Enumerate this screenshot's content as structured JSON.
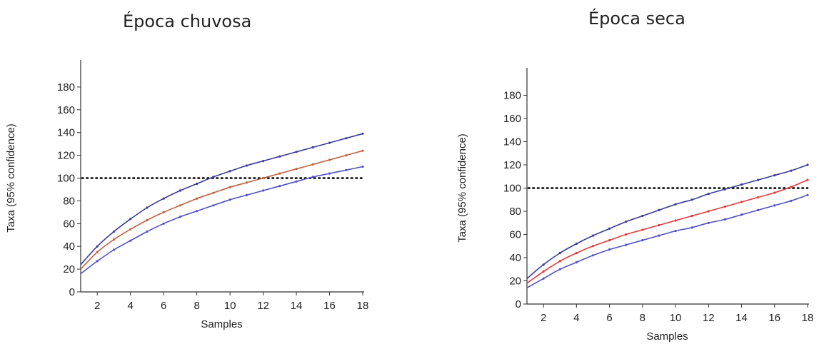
{
  "colors": {
    "upper": "#3a3a9a",
    "lower": "#5050c8",
    "mean_left": "#c06040",
    "mean_right": "#e23a3a",
    "reference": "#000000",
    "axis": "#333333"
  },
  "chart_data": [
    {
      "type": "line",
      "title": "Época chuvosa",
      "xlabel": "Samples",
      "ylabel": "Taxa (95% confidence)",
      "xlim": [
        1,
        18
      ],
      "ylim": [
        0,
        200
      ],
      "xticks": [
        2,
        4,
        6,
        8,
        10,
        12,
        14,
        16,
        18
      ],
      "yticks": [
        0,
        20,
        40,
        60,
        80,
        100,
        120,
        140,
        160,
        180
      ],
      "x": [
        1,
        2,
        3,
        4,
        5,
        6,
        7,
        8,
        9,
        10,
        11,
        12,
        13,
        14,
        15,
        16,
        17,
        18
      ],
      "series": [
        {
          "role": "upper",
          "values": [
            24,
            40,
            53,
            64,
            74,
            82,
            89,
            95,
            101,
            106,
            111,
            115,
            119,
            123,
            127,
            131,
            135,
            139
          ]
        },
        {
          "role": "mean",
          "values": [
            20,
            35,
            46,
            55,
            63,
            70,
            76,
            82,
            87,
            92,
            96,
            100,
            104,
            108,
            112,
            116,
            120,
            124
          ]
        },
        {
          "role": "lower",
          "values": [
            16,
            27,
            37,
            45,
            53,
            60,
            66,
            71,
            76,
            81,
            85,
            89,
            93,
            97,
            101,
            104,
            107,
            110
          ]
        }
      ],
      "reference_line": {
        "y": 100,
        "style": "dotted"
      }
    },
    {
      "type": "line",
      "title": "Época seca",
      "xlabel": "Samples",
      "ylabel": "Taxa (95% confidence)",
      "xlim": [
        1,
        18
      ],
      "ylim": [
        0,
        200
      ],
      "xticks": [
        2,
        4,
        6,
        8,
        10,
        12,
        14,
        16,
        18
      ],
      "yticks": [
        0,
        20,
        40,
        60,
        80,
        100,
        120,
        140,
        160,
        180
      ],
      "x": [
        1,
        2,
        3,
        4,
        5,
        6,
        7,
        8,
        9,
        10,
        11,
        12,
        13,
        14,
        15,
        16,
        17,
        18
      ],
      "series": [
        {
          "role": "upper",
          "values": [
            22,
            34,
            44,
            52,
            59,
            65,
            71,
            76,
            81,
            86,
            90,
            95,
            99,
            103,
            107,
            111,
            115,
            120
          ]
        },
        {
          "role": "mean",
          "values": [
            18,
            28,
            37,
            44,
            50,
            55,
            60,
            64,
            68,
            72,
            76,
            80,
            84,
            88,
            92,
            96,
            101,
            107
          ]
        },
        {
          "role": "lower",
          "values": [
            14,
            22,
            30,
            36,
            42,
            47,
            51,
            55,
            59,
            63,
            66,
            70,
            73,
            77,
            81,
            85,
            89,
            94
          ]
        }
      ],
      "reference_line": {
        "y": 100,
        "style": "dotted"
      }
    }
  ]
}
